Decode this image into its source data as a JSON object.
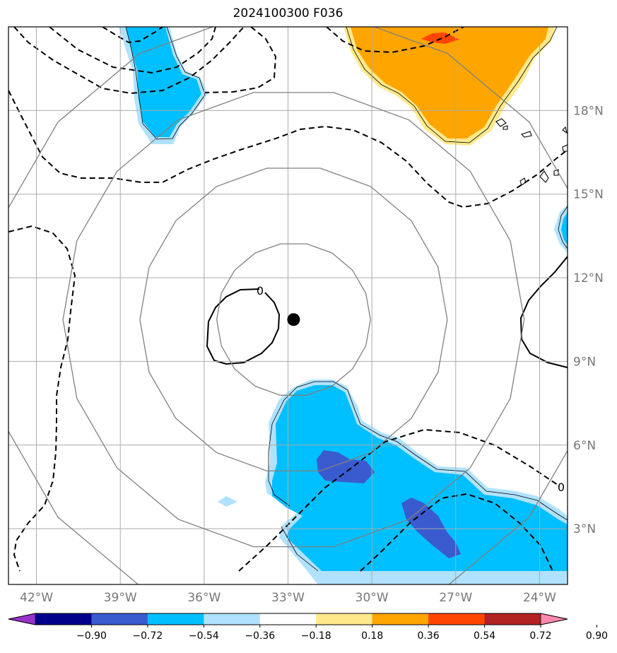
{
  "title": "2024100300 F036",
  "map": {
    "lon_range": [
      -43,
      -23
    ],
    "lat_range": [
      1,
      21
    ],
    "lon_ticks": [
      {
        "value": -42,
        "label": "42°W"
      },
      {
        "value": -39,
        "label": "39°W"
      },
      {
        "value": -36,
        "label": "36°W"
      },
      {
        "value": -33,
        "label": "33°W"
      },
      {
        "value": -30,
        "label": "30°W"
      },
      {
        "value": -27,
        "label": "27°W"
      },
      {
        "value": -24,
        "label": "24°W"
      }
    ],
    "lat_ticks": [
      {
        "value": 3,
        "label": "3°N"
      },
      {
        "value": 6,
        "label": "6°N"
      },
      {
        "value": 9,
        "label": "9°N"
      },
      {
        "value": 12,
        "label": "12°N"
      },
      {
        "value": 15,
        "label": "15°N"
      },
      {
        "value": 18,
        "label": "18°N"
      }
    ],
    "center": {
      "lon": -32.8,
      "lat": 10.5
    },
    "range_rings_deg": [
      2.75,
      5.5,
      8.25,
      11
    ],
    "contour_labels": [
      "0",
      "0"
    ],
    "grid": true
  },
  "colorbar": {
    "levels": [
      "−0.90",
      "−0.72",
      "−0.54",
      "−0.36",
      "−0.18",
      "0.18",
      "0.36",
      "0.54",
      "0.72",
      "0.90"
    ],
    "colors": [
      "#9932CC",
      "#00008B",
      "#3A5BCF",
      "#00BFFF",
      "#B0E2FF",
      "#FFFFFF",
      "#FFE98A",
      "#FFA500",
      "#FF4500",
      "#B22222",
      "#FF88B0"
    ]
  }
}
